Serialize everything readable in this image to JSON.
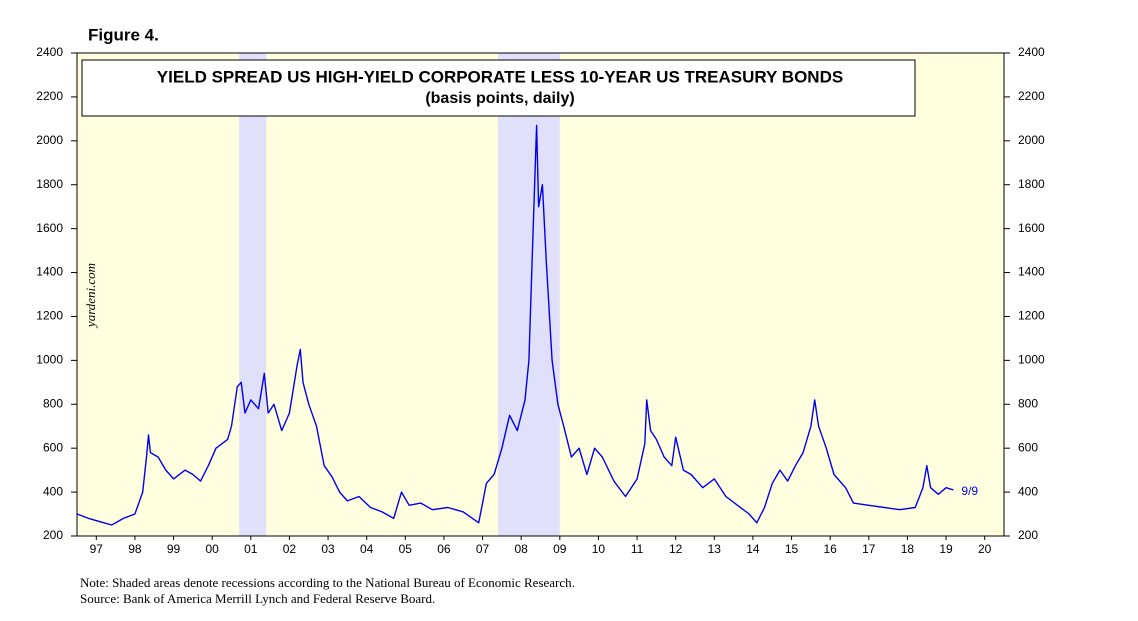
{
  "chart_data": {
    "type": "line",
    "figure_label": "Figure 4.",
    "title": "YIELD SPREAD US HIGH-YIELD CORPORATE LESS 10-YEAR US TREASURY BONDS",
    "subtitle": "(basis points, daily)",
    "watermark": "yardeni.com",
    "annotation": "9/9",
    "note": "Note: Shaded areas denote recessions according to the National Bureau of Economic Research.",
    "source": "Source: Bank of America Merrill Lynch and Federal Reserve Board.",
    "color": "#0000ee",
    "recession_color": "#e0e0fa",
    "recessions": [
      [
        2001.2,
        2001.9
      ],
      [
        2007.9,
        2009.5
      ]
    ],
    "x": [
      1997.0,
      1997.3,
      1997.7,
      1997.9,
      1998.2,
      1998.5,
      1998.7,
      1998.8,
      1998.85,
      1998.9,
      1999.1,
      1999.3,
      1999.5,
      1999.8,
      2000.0,
      2000.2,
      2000.4,
      2000.6,
      2000.9,
      2001.0,
      2001.15,
      2001.25,
      2001.35,
      2001.5,
      2001.7,
      2001.85,
      2001.95,
      2002.1,
      2002.3,
      2002.5,
      2002.7,
      2002.78,
      2002.85,
      2003.0,
      2003.2,
      2003.4,
      2003.6,
      2003.8,
      2004.0,
      2004.3,
      2004.6,
      2004.9,
      2005.2,
      2005.4,
      2005.6,
      2005.9,
      2006.2,
      2006.6,
      2007.0,
      2007.4,
      2007.6,
      2007.8,
      2008.0,
      2008.2,
      2008.4,
      2008.6,
      2008.7,
      2008.8,
      2008.9,
      2008.95,
      2009.05,
      2009.15,
      2009.3,
      2009.45,
      2009.6,
      2009.8,
      2010.0,
      2010.2,
      2010.4,
      2010.6,
      2010.9,
      2011.2,
      2011.5,
      2011.7,
      2011.75,
      2011.85,
      2012.0,
      2012.2,
      2012.4,
      2012.5,
      2012.7,
      2012.9,
      2013.2,
      2013.5,
      2013.8,
      2014.1,
      2014.4,
      2014.6,
      2014.8,
      2015.0,
      2015.2,
      2015.4,
      2015.6,
      2015.8,
      2016.0,
      2016.1,
      2016.2,
      2016.4,
      2016.6,
      2016.9,
      2017.1,
      2017.5,
      2017.9,
      2018.3,
      2018.7,
      2018.9,
      2019.0,
      2019.1,
      2019.3,
      2019.5,
      2019.69
    ],
    "values": [
      300,
      280,
      260,
      250,
      280,
      300,
      400,
      560,
      660,
      580,
      560,
      500,
      460,
      500,
      480,
      450,
      520,
      600,
      640,
      700,
      880,
      900,
      760,
      820,
      780,
      940,
      760,
      800,
      680,
      760,
      980,
      1050,
      900,
      800,
      700,
      520,
      470,
      400,
      360,
      380,
      330,
      310,
      280,
      400,
      340,
      350,
      320,
      330,
      310,
      260,
      440,
      480,
      600,
      750,
      680,
      820,
      1000,
      1550,
      2070,
      1700,
      1800,
      1450,
      1000,
      800,
      700,
      560,
      600,
      480,
      600,
      560,
      450,
      380,
      460,
      620,
      820,
      680,
      640,
      560,
      520,
      650,
      500,
      480,
      420,
      460,
      380,
      340,
      300,
      260,
      330,
      440,
      500,
      450,
      520,
      580,
      700,
      820,
      700,
      600,
      480,
      420,
      350,
      340,
      330,
      320,
      330,
      420,
      520,
      420,
      390,
      420,
      410
    ],
    "xlim": [
      1997,
      2021
    ],
    "xticks": [
      {
        "value": 1997.5,
        "label": "97"
      },
      {
        "value": 1998.5,
        "label": "98"
      },
      {
        "value": 1999.5,
        "label": "99"
      },
      {
        "value": 2000.5,
        "label": "00"
      },
      {
        "value": 2001.5,
        "label": "01"
      },
      {
        "value": 2002.5,
        "label": "02"
      },
      {
        "value": 2003.5,
        "label": "03"
      },
      {
        "value": 2004.5,
        "label": "04"
      },
      {
        "value": 2005.5,
        "label": "05"
      },
      {
        "value": 2006.5,
        "label": "06"
      },
      {
        "value": 2007.5,
        "label": "07"
      },
      {
        "value": 2008.5,
        "label": "08"
      },
      {
        "value": 2009.5,
        "label": "09"
      },
      {
        "value": 2010.5,
        "label": "10"
      },
      {
        "value": 2011.5,
        "label": "11"
      },
      {
        "value": 2012.5,
        "label": "12"
      },
      {
        "value": 2013.5,
        "label": "13"
      },
      {
        "value": 2014.5,
        "label": "14"
      },
      {
        "value": 2015.5,
        "label": "15"
      },
      {
        "value": 2016.5,
        "label": "16"
      },
      {
        "value": 2017.5,
        "label": "17"
      },
      {
        "value": 2018.5,
        "label": "18"
      },
      {
        "value": 2019.5,
        "label": "19"
      },
      {
        "value": 2020.5,
        "label": "20"
      }
    ],
    "ylim": [
      200,
      2400
    ],
    "yticks": [
      200,
      400,
      600,
      800,
      1000,
      1200,
      1400,
      1600,
      1800,
      2000,
      2200,
      2400
    ]
  }
}
